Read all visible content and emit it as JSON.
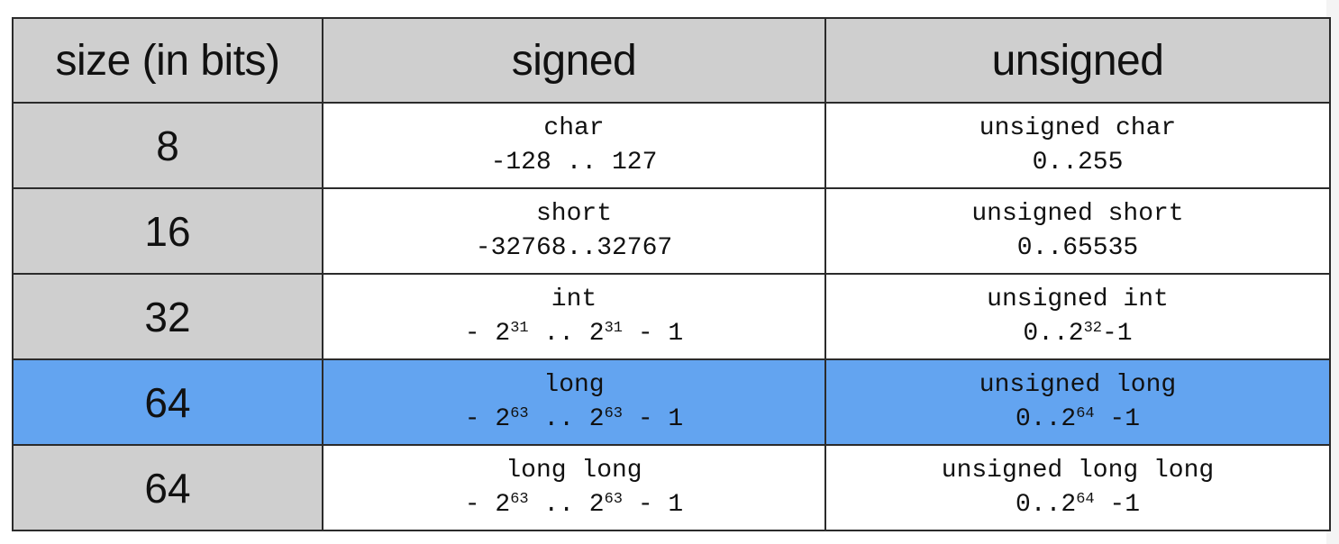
{
  "table": {
    "headers": {
      "size": "size (in bits)",
      "signed": "signed",
      "unsigned": "unsigned"
    },
    "rows": [
      {
        "size": "8",
        "highlighted": false,
        "signed": {
          "name": "char",
          "range": "-128 .. 127"
        },
        "unsigned": {
          "name": "unsigned char",
          "range": "0..255"
        }
      },
      {
        "size": "16",
        "highlighted": false,
        "signed": {
          "name": "short",
          "range": "-32768..32767"
        },
        "unsigned": {
          "name": "unsigned short",
          "range": "0..65535"
        }
      },
      {
        "size": "32",
        "highlighted": false,
        "signed": {
          "name": "int",
          "range_parts": {
            "a": "- 2",
            "a_exp": "31",
            "b": " .. 2",
            "b_exp": "31",
            "c": " - 1"
          }
        },
        "unsigned": {
          "name": "unsigned int",
          "range_parts": {
            "a": "0..2",
            "a_exp": "32",
            "b": "-1"
          }
        }
      },
      {
        "size": "64",
        "highlighted": true,
        "signed": {
          "name": "long",
          "range_parts": {
            "a": "- 2",
            "a_exp": "63",
            "b": " .. 2",
            "b_exp": "63",
            "c": " - 1"
          }
        },
        "unsigned": {
          "name": "unsigned long",
          "range_parts": {
            "a": "0..2",
            "a_exp": "64",
            "b": " -1"
          }
        }
      },
      {
        "size": "64",
        "highlighted": false,
        "signed": {
          "name": "long long",
          "range_parts": {
            "a": "- 2",
            "a_exp": "63",
            "b": " .. 2",
            "b_exp": "63",
            "c": " - 1"
          }
        },
        "unsigned": {
          "name": "unsigned long long",
          "range_parts": {
            "a": "0..2",
            "a_exp": "64",
            "b": " -1"
          }
        }
      }
    ]
  },
  "colors": {
    "header_bg": "#cfcfcf",
    "highlight_bg": "#63a4f0",
    "border": "#2b2b2b"
  }
}
